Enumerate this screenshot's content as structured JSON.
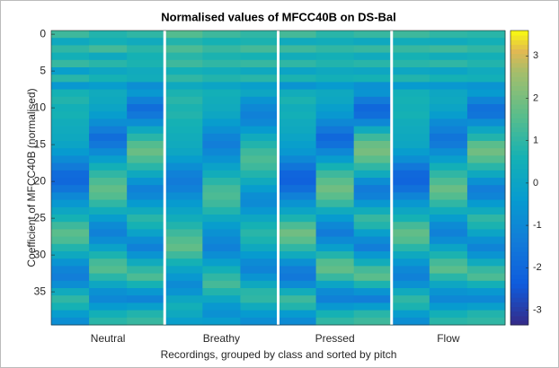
{
  "chart_data": {
    "type": "heatmap",
    "title": "Normalised values of MFCC40B on DS-Bal",
    "xlabel": "Recordings, grouped by class and sorted by pitch",
    "ylabel": "Coefficient of MFCC40B (normalised)",
    "groups": [
      "Neutral",
      "Breathy",
      "Pressed",
      "Flow"
    ],
    "colormap": "parula",
    "ylim": [
      -0.5,
      39.5
    ],
    "yticks": [
      0,
      5,
      10,
      15,
      20,
      25,
      30,
      35
    ],
    "clim": [
      -3.35,
      3.6
    ],
    "colorbar_ticks": [
      -3,
      -2,
      -1,
      0,
      1,
      2,
      3
    ],
    "z": [
      [
        1.2,
        0.8,
        1.0,
        1.5,
        1.2,
        1.0,
        1.3,
        0.9,
        1.1,
        1.2,
        1.0,
        0.9
      ],
      [
        0.2,
        0.5,
        0.3,
        0.8,
        0.6,
        0.7,
        0.3,
        0.4,
        0.2,
        0.4,
        0.3,
        0.5
      ],
      [
        1.0,
        1.3,
        0.9,
        1.4,
        1.1,
        1.3,
        1.2,
        1.0,
        1.1,
        1.1,
        1.2,
        1.0
      ],
      [
        0.5,
        0.2,
        0.6,
        0.9,
        0.7,
        0.6,
        0.4,
        0.5,
        0.3,
        0.6,
        0.4,
        0.5
      ],
      [
        1.1,
        0.9,
        0.7,
        1.2,
        1.0,
        1.1,
        1.0,
        0.8,
        0.9,
        0.9,
        1.0,
        0.8
      ],
      [
        -0.2,
        0.1,
        0.3,
        0.5,
        0.4,
        0.2,
        0.0,
        0.2,
        0.1,
        0.1,
        0.0,
        0.3
      ],
      [
        0.9,
        0.6,
        0.4,
        1.0,
        0.8,
        0.9,
        0.7,
        0.5,
        0.6,
        0.8,
        0.6,
        0.5
      ],
      [
        -0.5,
        -0.3,
        -0.8,
        0.2,
        0.0,
        -0.2,
        -0.6,
        -0.4,
        -0.7,
        -0.4,
        -0.5,
        -0.6
      ],
      [
        0.6,
        0.3,
        -0.5,
        0.7,
        0.5,
        0.1,
        0.4,
        0.2,
        -0.6,
        0.5,
        0.1,
        -0.4
      ],
      [
        0.8,
        0.2,
        -1.2,
        0.9,
        0.4,
        -0.6,
        0.7,
        0.1,
        -1.4,
        0.6,
        0.2,
        -1.1
      ],
      [
        0.5,
        0.0,
        -1.8,
        0.7,
        0.3,
        -1.0,
        0.4,
        -0.2,
        -2.0,
        0.5,
        0.0,
        -1.7
      ],
      [
        0.6,
        -0.3,
        -1.5,
        0.8,
        0.1,
        -1.2,
        0.5,
        -0.5,
        -1.8,
        0.6,
        -0.3,
        -1.6
      ],
      [
        0.4,
        -0.8,
        -0.8,
        0.6,
        -0.3,
        -1.0,
        0.3,
        -1.0,
        -1.0,
        0.4,
        -0.9,
        -0.8
      ],
      [
        0.3,
        -1.3,
        0.2,
        0.5,
        -0.7,
        -0.4,
        0.2,
        -1.5,
        0.3,
        0.3,
        -1.2,
        0.1
      ],
      [
        0.2,
        -1.8,
        0.9,
        0.4,
        -1.1,
        0.3,
        0.0,
        -2.0,
        1.2,
        0.2,
        -1.6,
        0.8
      ],
      [
        0.0,
        -1.5,
        1.5,
        0.3,
        -1.3,
        0.8,
        -0.2,
        -1.7,
        1.8,
        0.1,
        -1.4,
        1.6
      ],
      [
        -0.4,
        -0.9,
        1.8,
        0.1,
        -1.0,
        1.2,
        -0.5,
        -1.0,
        2.0,
        -0.3,
        -0.8,
        1.9
      ],
      [
        -0.9,
        -0.2,
        1.4,
        -0.3,
        -0.6,
        1.4,
        -1.0,
        -0.3,
        1.6,
        -0.8,
        -0.2,
        1.5
      ],
      [
        -1.4,
        0.5,
        0.9,
        -0.8,
        -0.1,
        1.2,
        -1.6,
        0.6,
        1.0,
        -1.5,
        0.5,
        0.9
      ],
      [
        -1.9,
        1.0,
        0.2,
        -1.2,
        0.4,
        0.8,
        -2.1,
        1.2,
        0.3,
        -2.0,
        1.0,
        0.2
      ],
      [
        -2.0,
        1.4,
        -0.6,
        -1.4,
        0.9,
        0.3,
        -2.2,
        1.6,
        -0.8,
        -2.1,
        1.4,
        -0.7
      ],
      [
        -1.6,
        1.7,
        -1.2,
        -1.2,
        1.3,
        -0.3,
        -1.8,
        1.9,
        -1.4,
        -1.7,
        1.8,
        -1.3
      ],
      [
        -1.0,
        1.5,
        -1.0,
        -0.8,
        1.4,
        -0.8,
        -1.2,
        1.6,
        -1.2,
        -1.1,
        1.5,
        -1.1
      ],
      [
        -0.5,
        1.0,
        -0.4,
        -0.4,
        1.2,
        -0.9,
        -0.6,
        1.1,
        -0.5,
        -0.5,
        1.0,
        -0.4
      ],
      [
        0.1,
        0.4,
        0.3,
        0.0,
        0.8,
        -0.5,
        0.0,
        0.3,
        0.4,
        0.1,
        0.4,
        0.3
      ],
      [
        0.6,
        -0.3,
        0.9,
        0.4,
        0.2,
        0.1,
        0.7,
        -0.4,
        1.1,
        0.6,
        -0.3,
        1.0
      ],
      [
        1.2,
        -0.9,
        0.6,
        0.8,
        -0.3,
        0.6,
        1.4,
        -1.0,
        0.8,
        1.3,
        -0.9,
        0.7
      ],
      [
        1.6,
        -1.2,
        -0.1,
        1.2,
        -0.7,
        0.9,
        1.9,
        -1.4,
        -0.2,
        1.7,
        -1.2,
        0.0
      ],
      [
        1.4,
        -0.8,
        -0.8,
        1.5,
        -1.0,
        0.7,
        1.6,
        -0.9,
        -0.9,
        1.5,
        -0.8,
        -0.7
      ],
      [
        0.8,
        -0.1,
        -1.2,
        1.7,
        -1.2,
        0.2,
        1.0,
        -0.2,
        -1.3,
        0.9,
        0.0,
        -1.1
      ],
      [
        0.2,
        0.7,
        -0.6,
        1.2,
        -0.8,
        -0.4,
        0.3,
        0.8,
        -0.5,
        0.2,
        0.7,
        -0.6
      ],
      [
        -0.6,
        1.3,
        0.3,
        0.6,
        -0.2,
        -0.9,
        -0.7,
        1.5,
        0.4,
        -0.5,
        1.3,
        0.3
      ],
      [
        -1.1,
        1.5,
        1.0,
        0.0,
        0.5,
        -1.1,
        -1.3,
        1.7,
        1.3,
        -1.0,
        1.6,
        1.1
      ],
      [
        -1.3,
        0.9,
        1.4,
        -0.5,
        1.0,
        -0.6,
        -1.5,
        1.1,
        1.6,
        -1.2,
        0.9,
        1.4
      ],
      [
        -0.8,
        0.1,
        0.6,
        -0.9,
        1.3,
        0.2,
        -0.9,
        0.0,
        0.7,
        -0.7,
        0.1,
        0.5
      ],
      [
        0.3,
        -0.7,
        -0.5,
        -0.6,
        0.8,
        0.9,
        0.4,
        -0.9,
        -0.6,
        0.3,
        -0.6,
        -0.5
      ],
      [
        1.0,
        -1.0,
        -1.1,
        0.1,
        0.1,
        1.0,
        1.2,
        -1.2,
        -1.3,
        1.0,
        -1.0,
        -1.0
      ],
      [
        0.6,
        -0.4,
        -0.2,
        0.5,
        -0.5,
        0.3,
        0.8,
        -0.5,
        -0.3,
        0.7,
        -0.4,
        -0.2
      ],
      [
        -0.3,
        0.5,
        0.8,
        0.2,
        -0.7,
        -0.4,
        -0.4,
        0.6,
        0.9,
        -0.3,
        0.5,
        0.8
      ],
      [
        -0.8,
        0.9,
        1.1,
        -0.2,
        -0.3,
        -0.8,
        -0.9,
        1.0,
        1.2,
        -0.8,
        0.9,
        1.0
      ]
    ]
  }
}
